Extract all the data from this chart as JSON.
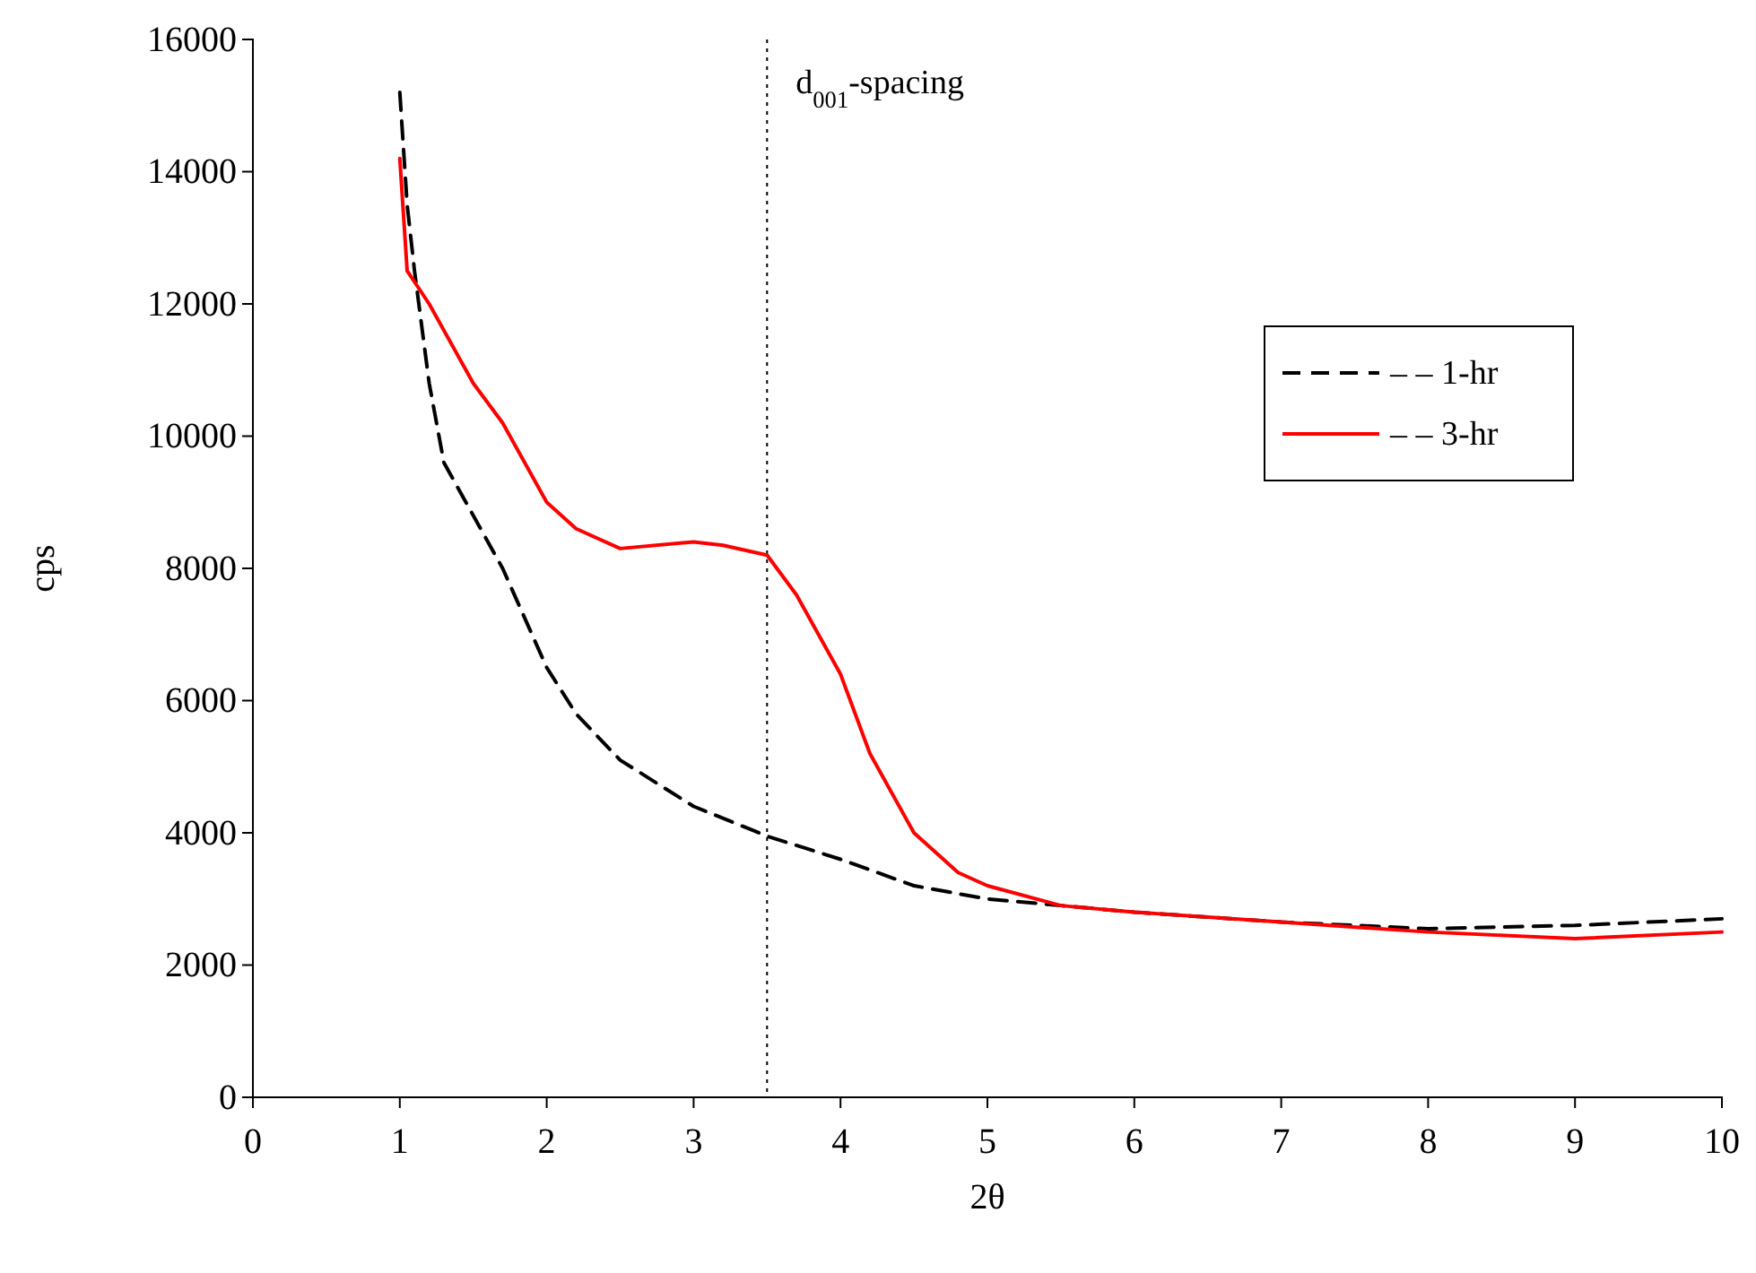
{
  "chart_data": {
    "type": "line",
    "xlabel": "2θ",
    "ylabel": "cps",
    "xlim": [
      0,
      10
    ],
    "xticks": [
      0,
      1,
      2,
      3,
      4,
      5,
      6,
      7,
      8,
      9,
      10
    ],
    "ylim": [
      0,
      16000
    ],
    "yticks": [
      0,
      2000,
      4000,
      6000,
      8000,
      10000,
      12000,
      14000,
      16000
    ],
    "grid": false,
    "legend": "right",
    "marker": "none",
    "series": [
      {
        "name": "– – 1-hr",
        "color": "#000000",
        "line_style": "dashed",
        "x": [
          1,
          1.05,
          1.1,
          1.2,
          1.3,
          1.5,
          1.7,
          2,
          2.2,
          2.5,
          3,
          3.5,
          4,
          4.5,
          5,
          5.5,
          6,
          7,
          8,
          9,
          10
        ],
        "values": [
          15200,
          13500,
          12500,
          10800,
          9600,
          8800,
          8000,
          6500,
          5800,
          5100,
          4400,
          3950,
          3600,
          3200,
          3000,
          2900,
          2800,
          2650,
          2550,
          2600,
          2700
        ]
      },
      {
        "name": "– – 3-hr",
        "color": "#ff0000",
        "line_style": "solid",
        "x": [
          1,
          1.05,
          1.2,
          1.5,
          1.7,
          2,
          2.2,
          2.5,
          3,
          3.2,
          3.5,
          3.7,
          4,
          4.2,
          4.5,
          4.8,
          5,
          5.5,
          6,
          7,
          8,
          9,
          10
        ],
        "values": [
          14200,
          12500,
          12000,
          10800,
          10200,
          9000,
          8600,
          8300,
          8400,
          8350,
          8200,
          7600,
          6400,
          5200,
          4000,
          3400,
          3200,
          2900,
          2800,
          2650,
          2500,
          2400,
          2500
        ]
      }
    ],
    "ref_lines": [
      {
        "axis": "x",
        "value": 3.5,
        "label": "d$_{001}$-spacing",
        "line_style": "dotted",
        "color": "#000000"
      }
    ]
  }
}
